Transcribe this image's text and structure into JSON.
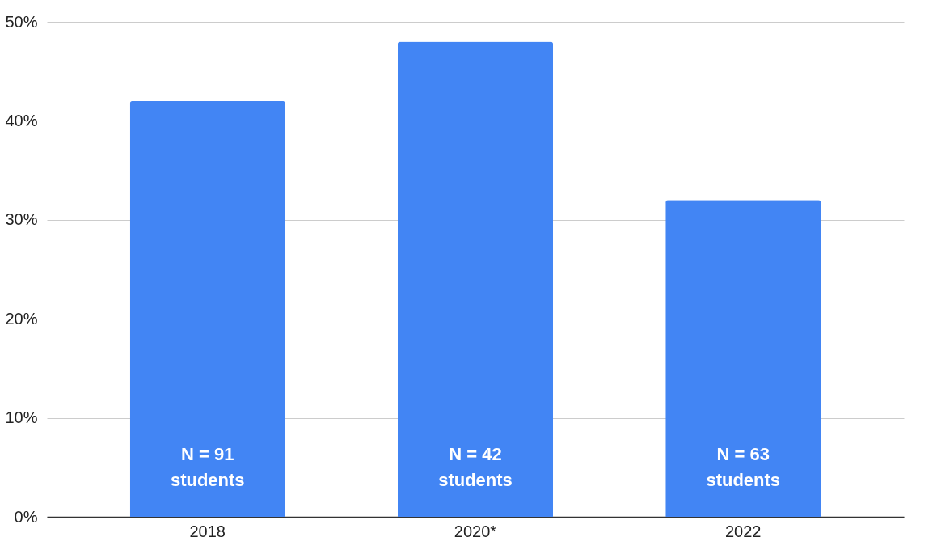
{
  "chart_data": {
    "type": "bar",
    "categories": [
      "2018",
      "2020*",
      "2022"
    ],
    "values": [
      42,
      48,
      32
    ],
    "color": "#4285f4",
    "ylim": [
      0,
      50
    ],
    "yticks": [
      {
        "value": 0,
        "label": "0%"
      },
      {
        "value": 10,
        "label": "10%"
      },
      {
        "value": 20,
        "label": "20%"
      },
      {
        "value": 30,
        "label": "30%"
      },
      {
        "value": 40,
        "label": "40%"
      },
      {
        "value": 50,
        "label": "50%"
      }
    ],
    "grid": "y",
    "annotations": [
      "N = 91\nstudents",
      "N = 42\nstudents",
      "N = 63\nstudents"
    ]
  }
}
